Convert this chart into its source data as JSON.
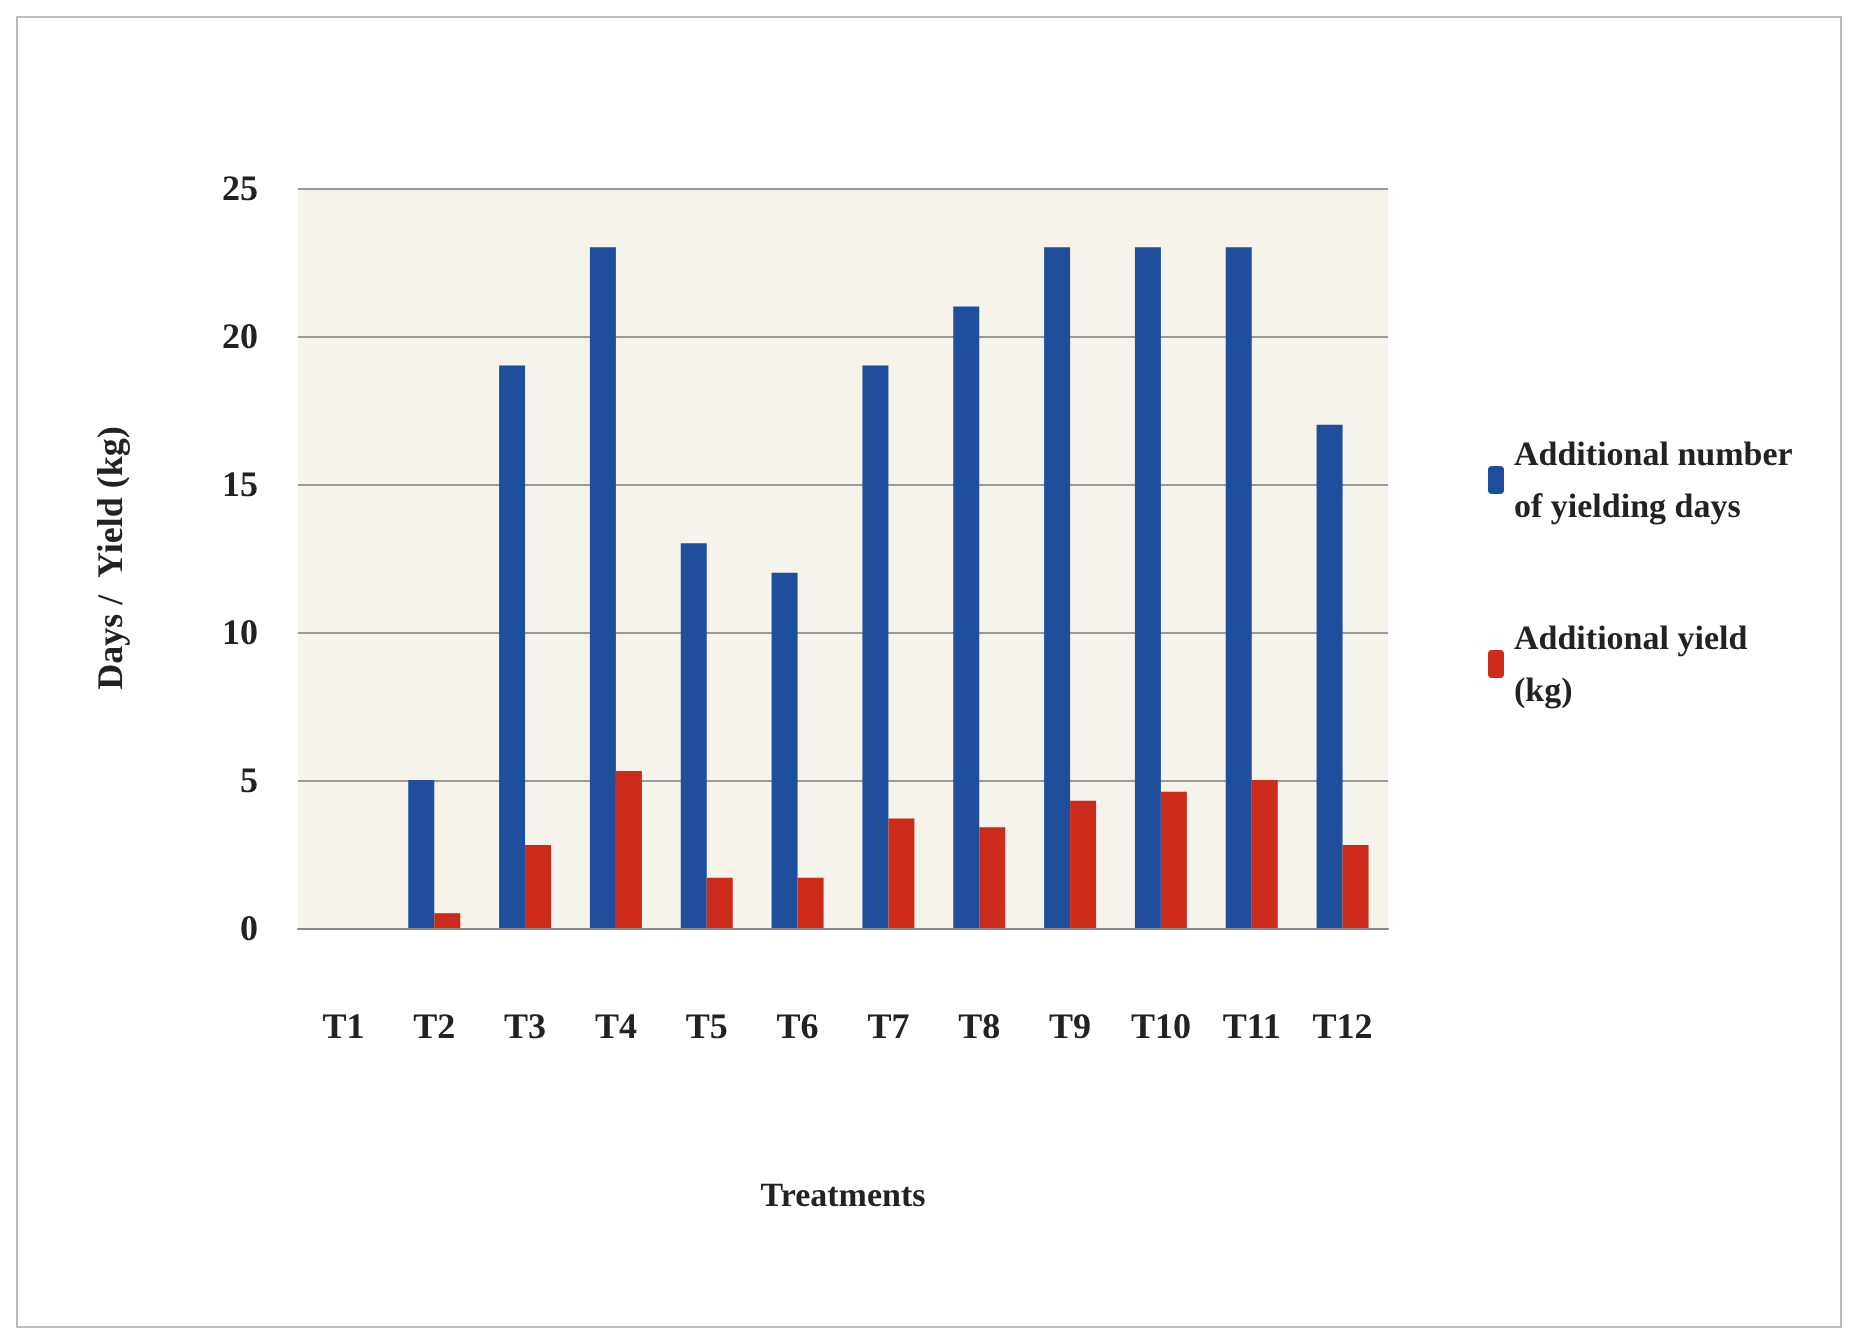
{
  "chart_data": {
    "type": "bar",
    "xlabel": "Treatments",
    "ylabel": "Days /  Yield (kg)",
    "categories": [
      "T1",
      "T2",
      "T3",
      "T4",
      "T5",
      "T6",
      "T7",
      "T8",
      "T9",
      "T10",
      "T11",
      "T12"
    ],
    "series": [
      {
        "name": "Additional number of yielding days",
        "color": "#1f4e9c",
        "values": [
          0,
          5,
          19,
          23,
          13,
          12,
          19,
          21,
          23,
          23,
          23,
          17
        ]
      },
      {
        "name": "Additional yield (kg)",
        "color": "#cc2a1a",
        "values": [
          0,
          0.5,
          2.8,
          5.3,
          1.7,
          1.7,
          3.7,
          3.4,
          4.3,
          4.6,
          5.0,
          2.8
        ]
      }
    ],
    "ylim": [
      0,
      25
    ],
    "yticks": [
      0,
      5,
      10,
      15,
      20,
      25
    ],
    "grid": "y",
    "legend": "right"
  }
}
